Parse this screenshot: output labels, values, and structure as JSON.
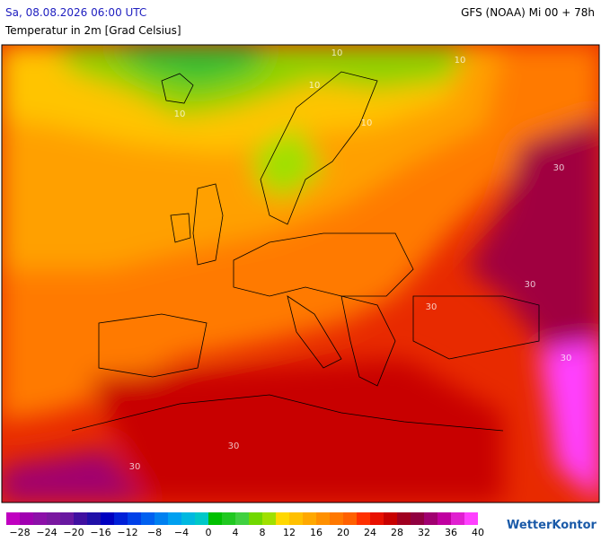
{
  "header": {
    "left": "Sa, 08.08.2026 06:00 UTC",
    "right": "GFS (NOAA) Mi 00 + 78h",
    "subtitle": "Temperatur in 2m [Grad Celsius]"
  },
  "map": {
    "contour_labels": [
      "10",
      "10",
      "10",
      "10",
      "10",
      "30",
      "30",
      "30",
      "30",
      "30",
      "30"
    ]
  },
  "legend": {
    "labels": [
      "−28",
      "−24",
      "−20",
      "−16",
      "−12",
      "−8",
      "−4",
      "0",
      "4",
      "8",
      "12",
      "16",
      "20",
      "24",
      "28",
      "32",
      "36",
      "40"
    ],
    "colors": [
      "#c000c0",
      "#a000b0",
      "#8c10a8",
      "#7a18a0",
      "#6818a0",
      "#4010a0",
      "#2010a8",
      "#0000c0",
      "#0020d8",
      "#0040e8",
      "#0060f0",
      "#0080f0",
      "#00a0f0",
      "#00b8e0",
      "#00c8c8",
      "#00c000",
      "#20c820",
      "#40d040",
      "#70d800",
      "#a0e000",
      "#ffd800",
      "#ffc000",
      "#ffa800",
      "#ff9000",
      "#ff7800",
      "#ff6000",
      "#ff3000",
      "#e81000",
      "#c80000",
      "#a00020",
      "#900040",
      "#a00070",
      "#c000a0",
      "#e020d0",
      "#ff40ff"
    ]
  },
  "logo": "WetterKontor"
}
